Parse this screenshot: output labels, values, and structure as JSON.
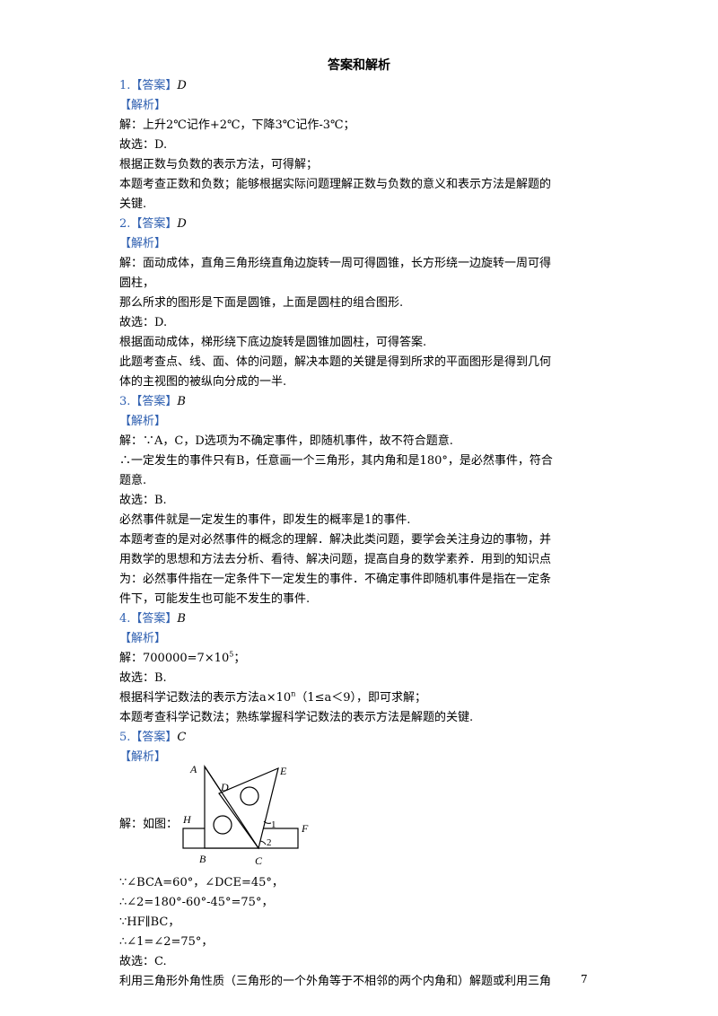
{
  "title": "答案和解析",
  "items": [
    {
      "num": "1.",
      "ans_tag": "【答案】",
      "ans": "D",
      "analysis_tag": "【解析】",
      "lines": [
        "解：上升2℃记作+2℃，下降3℃记作-3℃；",
        "故选：D.",
        "根据正数与负数的表示方法，可得解；",
        "本题考查正数和负数；能够根据实际问题理解正数与负数的意义和表示方法是解题的",
        "关键."
      ]
    },
    {
      "num": "2.",
      "ans_tag": "【答案】",
      "ans": "D",
      "analysis_tag": "【解析】",
      "lines": [
        "解：面动成体，直角三角形绕直角边旋转一周可得圆锥，长方形绕一边旋转一周可得",
        "圆柱，",
        "那么所求的图形是下面是圆锥，上面是圆柱的组合图形.",
        "故选：D.",
        "根据面动成体，梯形绕下底边旋转是圆锥加圆柱，可得答案.",
        "此题考查点、线、面、体的问题，解决本题的关键是得到所求的平面图形是得到几何",
        "体的主视图的被纵向分成的一半."
      ]
    },
    {
      "num": "3.",
      "ans_tag": "【答案】",
      "ans": "B",
      "analysis_tag": "【解析】",
      "lines": [
        "解：∵A，C，D选项为不确定事件，即随机事件，故不符合题意.",
        "∴一定发生的事件只有B，任意画一个三角形，其内角和是180°，是必然事件，符合",
        "题意.",
        "故选：B.",
        "必然事件就是一定发生的事件，即发生的概率是1的事件.",
        "本题考查的是对必然事件的概念的理解．解决此类问题，要学会关注身边的事物，并",
        "用数学的思想和方法去分析、看待、解决问题，提高自身的数学素养．用到的知识点",
        "为：必然事件指在一定条件下一定发生的事件．不确定事件即随机事件是指在一定条",
        "件下，可能发生也可能不发生的事件."
      ]
    },
    {
      "num": "4.",
      "ans_tag": "【答案】",
      "ans": "B",
      "analysis_tag": "【解析】",
      "line1_pre": "解：700000=7×10",
      "line1_sup": "5",
      "line1_post": "；",
      "line2": "故选：B.",
      "line3_pre": "根据科学记数法的表示方法a×10",
      "line3_sup": "n",
      "line3_post": "（1≤a＜9），即可求解；",
      "line4": "本题考查科学记数法；熟练掌握科学记数法的表示方法是解题的关键."
    },
    {
      "num": "5.",
      "ans_tag": "【答案】",
      "ans": "C",
      "analysis_tag": "【解析】",
      "fig_label": "解：如图：",
      "fig_letters": {
        "A": "A",
        "D": "D",
        "E": "E",
        "H": "H",
        "F": "F",
        "B": "B",
        "C": "C",
        "one": "1",
        "two": "2"
      },
      "lines": [
        "∵∠BCA=60°，∠DCE=45°，",
        "∴∠2=180°-60°-45°=75°，",
        "∵HF∥BC，",
        "∴∠1=∠2=75°，",
        "故选：C.",
        "利用三角形外角性质（三角形的一个外角等于不相邻的两个内角和）解题或利用三角"
      ]
    }
  ],
  "page_number": "7"
}
